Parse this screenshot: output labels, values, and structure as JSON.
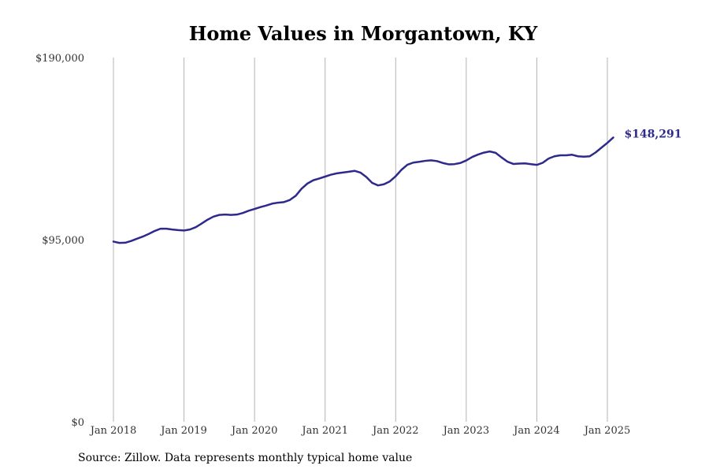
{
  "source_note": "Source: Zillow. Data represents monthly typical home value",
  "colors": {
    "line": "#2e2a8c",
    "grid": "#b3b3b3",
    "text": "#333333"
  },
  "chart_data": {
    "type": "line",
    "title": "Home Values in Morgantown, KY",
    "xlabel": "",
    "ylabel": "",
    "ylim": [
      0,
      190000
    ],
    "yticks": [
      0,
      95000,
      190000
    ],
    "ytick_labels": [
      "$0",
      "$95,000",
      "$190,000"
    ],
    "xlim": [
      "2018-01",
      "2025-01"
    ],
    "xticks": [
      "2018-01",
      "2019-01",
      "2020-01",
      "2021-01",
      "2022-01",
      "2023-01",
      "2024-01",
      "2025-01"
    ],
    "xtick_labels": [
      "Jan 2018",
      "Jan 2019",
      "Jan 2020",
      "Jan 2021",
      "Jan 2022",
      "Jan 2023",
      "Jan 2024",
      "Jan 2025"
    ],
    "grid": "vertical",
    "end_label": "$148,291",
    "series": [
      {
        "x": [
          "2018-01",
          "2018-02",
          "2018-03",
          "2018-04",
          "2018-05",
          "2018-06",
          "2018-07",
          "2018-08",
          "2018-09",
          "2018-10",
          "2018-11",
          "2018-12",
          "2019-01",
          "2019-02",
          "2019-03",
          "2019-04",
          "2019-05",
          "2019-06",
          "2019-07",
          "2019-08",
          "2019-09",
          "2019-10",
          "2019-11",
          "2019-12",
          "2020-01",
          "2020-02",
          "2020-03",
          "2020-04",
          "2020-05",
          "2020-06",
          "2020-07",
          "2020-08",
          "2020-09",
          "2020-10",
          "2020-11",
          "2020-12",
          "2021-01",
          "2021-02",
          "2021-03",
          "2021-04",
          "2021-05",
          "2021-06",
          "2021-07",
          "2021-08",
          "2021-09",
          "2021-10",
          "2021-11",
          "2021-12",
          "2022-01",
          "2022-02",
          "2022-03",
          "2022-04",
          "2022-05",
          "2022-06",
          "2022-07",
          "2022-08",
          "2022-09",
          "2022-10",
          "2022-11",
          "2022-12",
          "2023-01",
          "2023-02",
          "2023-03",
          "2023-04",
          "2023-05",
          "2023-06",
          "2023-07",
          "2023-08",
          "2023-09",
          "2023-10",
          "2023-11",
          "2023-12",
          "2024-01",
          "2024-02",
          "2024-03",
          "2024-04",
          "2024-05",
          "2024-06",
          "2024-07",
          "2024-08",
          "2024-09",
          "2024-10",
          "2024-11",
          "2024-12",
          "2025-01",
          "2025-02"
        ],
        "y": [
          94000,
          93300,
          93400,
          94300,
          95500,
          96600,
          98000,
          99500,
          100700,
          100700,
          100300,
          100000,
          99800,
          100300,
          101500,
          103400,
          105400,
          107000,
          107900,
          108100,
          107900,
          108100,
          108900,
          110100,
          111000,
          112000,
          112800,
          113800,
          114300,
          114600,
          115700,
          117900,
          121600,
          124300,
          126000,
          126900,
          127900,
          128900,
          129600,
          130000,
          130400,
          130900,
          130000,
          127700,
          124600,
          123300,
          123900,
          125400,
          128100,
          131500,
          134100,
          135200,
          135600,
          136100,
          136400,
          136000,
          135000,
          134300,
          134400,
          135000,
          136300,
          138100,
          139400,
          140400,
          141000,
          140300,
          137900,
          135700,
          134500,
          134700,
          134800,
          134400,
          134000,
          135100,
          137300,
          138500,
          139000,
          139000,
          139300,
          138500,
          138300,
          138500,
          140500,
          143000,
          145500,
          148291
        ]
      }
    ]
  }
}
